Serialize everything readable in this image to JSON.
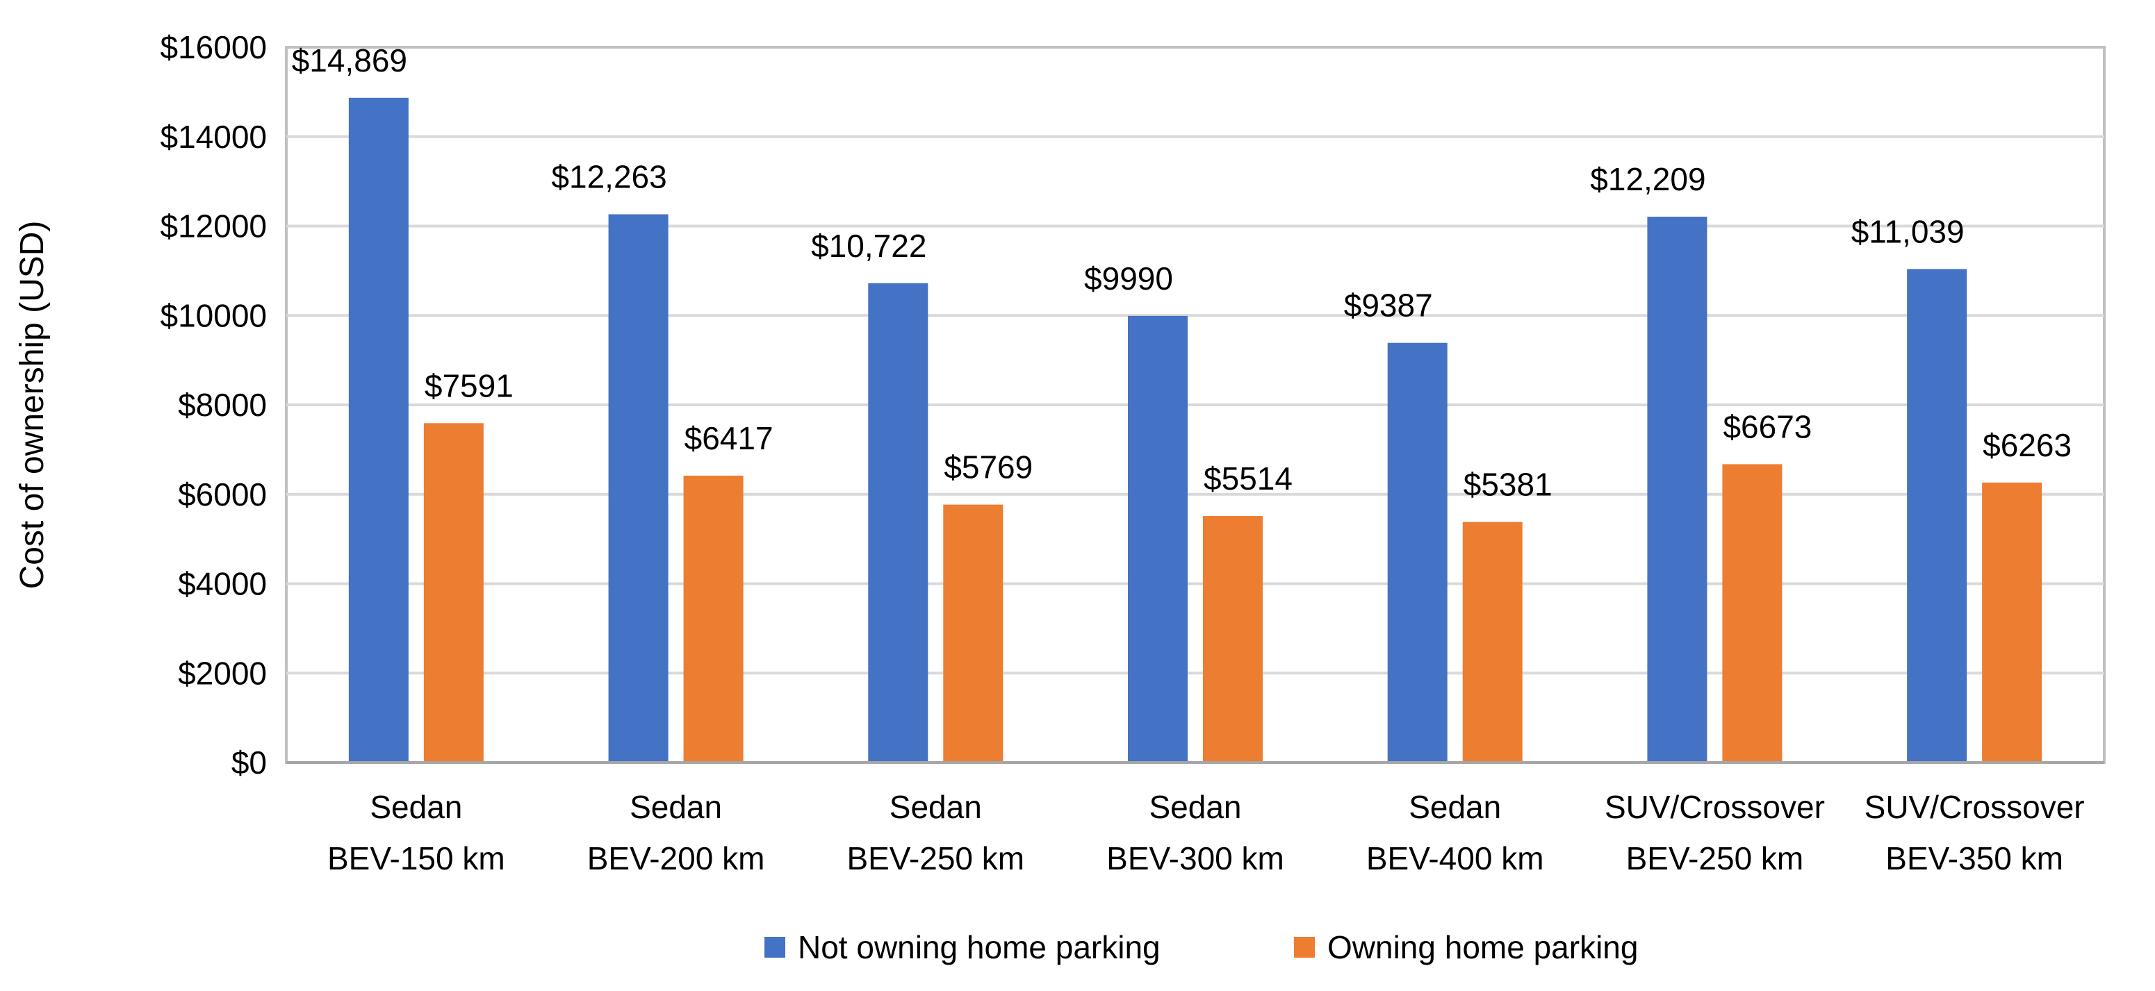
{
  "chart_data": {
    "type": "bar",
    "title": "",
    "xlabel": "",
    "ylabel": "Cost of ownership (USD)",
    "ylim": [
      0,
      16000
    ],
    "ytick_step": 2000,
    "ytick_labels": [
      "$0",
      "$2000",
      "$4000",
      "$6000",
      "$8000",
      "$10000",
      "$12000",
      "$14000",
      "$16000"
    ],
    "grid": true,
    "legend_position": "bottom",
    "categories": [
      [
        "Sedan",
        "BEV-150 km"
      ],
      [
        "Sedan",
        "BEV-200 km"
      ],
      [
        "Sedan",
        "BEV-250 km"
      ],
      [
        "Sedan",
        "BEV-300 km"
      ],
      [
        "Sedan",
        "BEV-400 km"
      ],
      [
        "SUV/Crossover",
        "BEV-250 km"
      ],
      [
        "SUV/Crossover",
        "BEV-350 km"
      ]
    ],
    "series": [
      {
        "name": "Not owning home parking",
        "color": "#4472C4",
        "values": [
          14869,
          12263,
          10722,
          9990,
          9387,
          12209,
          11039
        ],
        "labels": [
          "$14,869",
          "$12,263",
          "$10,722",
          "$9990",
          "$9387",
          "$12,209",
          "$11,039"
        ]
      },
      {
        "name": "Owning home parking",
        "color": "#ED7D31",
        "values": [
          7591,
          6417,
          5769,
          5514,
          5381,
          6673,
          6263
        ],
        "labels": [
          "$7591",
          "$6417",
          "$5769",
          "$5514",
          "$5381",
          "$6673",
          "$6263"
        ]
      }
    ]
  }
}
